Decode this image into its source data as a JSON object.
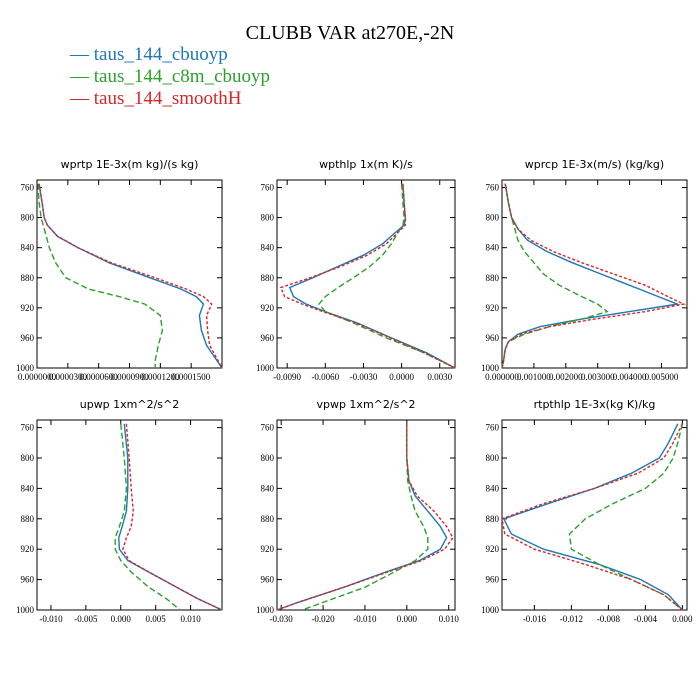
{
  "title": "CLUBB VAR at270E,-2N",
  "legend": [
    {
      "label": "taus_144_cbuoyp",
      "color": "#1f77b4",
      "dash": "solid"
    },
    {
      "label": "taus_144_c8m_cbuoyp",
      "color": "#2ca02c",
      "dash": "dashed"
    },
    {
      "label": "taus_144_smoothH",
      "color": "#d62728",
      "dash": "dotted"
    }
  ],
  "chart_data": [
    {
      "type": "line",
      "title": "wprtp  1E-3x(m kg)/(s kg)",
      "xlim": [
        0.0,
        0.00018
      ],
      "ylim": [
        1000,
        750
      ],
      "xticks": [
        0.0,
        3e-05,
        6e-05,
        9e-05,
        0.00012,
        0.00015
      ],
      "xtick_labels": [
        "0.0000000",
        "0.0000300",
        "0.0000600",
        "0.0000900",
        "0.0001200",
        "0.0001500"
      ],
      "yticks": [
        760,
        800,
        840,
        880,
        920,
        960,
        1000
      ],
      "y": [
        755,
        780,
        800,
        810,
        825,
        840,
        860,
        880,
        895,
        905,
        915,
        930,
        950,
        970,
        990,
        1000
      ],
      "series": [
        {
          "name": "taus_144_cbuoyp",
          "x": [
            2e-06,
            5e-06,
            7e-06,
            1e-05,
            2e-05,
            4e-05,
            7e-05,
            0.00011,
            0.00014,
            0.000155,
            0.000162,
            0.000158,
            0.00016,
            0.000165,
            0.000175,
            0.00018
          ]
        },
        {
          "name": "taus_144_c8m_cbuoyp",
          "x": [
            1e-06,
            2e-06,
            4e-06,
            6e-06,
            9e-06,
            1.2e-05,
            1.8e-05,
            2.8e-05,
            5e-05,
            8e-05,
            0.000105,
            0.00012,
            0.000122,
            0.000118,
            0.000115,
            0.000115
          ]
        },
        {
          "name": "taus_144_smoothH",
          "x": [
            2e-06,
            5e-06,
            7e-06,
            1e-05,
            2e-05,
            4e-05,
            7.2e-05,
            0.000115,
            0.000145,
            0.000162,
            0.00017,
            0.000165,
            0.000166,
            0.000168,
            0.000176,
            0.00018
          ]
        }
      ]
    },
    {
      "type": "line",
      "title": "wpthlp  1x(m K)/s",
      "xlim": [
        -0.0098,
        0.0042
      ],
      "ylim": [
        1000,
        750
      ],
      "xticks": [
        -0.009,
        -0.006,
        -0.003,
        0.0,
        0.003
      ],
      "xtick_labels": [
        "-0.0090",
        "-0.0060",
        "-0.0030",
        "0.0000",
        "0.0030"
      ],
      "yticks": [
        760,
        800,
        840,
        880,
        920,
        960,
        1000
      ],
      "y": [
        755,
        780,
        800,
        810,
        820,
        835,
        850,
        865,
        880,
        893,
        905,
        915,
        925,
        940,
        960,
        980,
        1000
      ],
      "series": [
        {
          "name": "taus_144_cbuoyp",
          "x": [
            0.0001,
            0.0002,
            0.0003,
            0.0002,
            -0.0005,
            -0.0015,
            -0.003,
            -0.005,
            -0.007,
            -0.0088,
            -0.0085,
            -0.0075,
            -0.006,
            -0.0035,
            -0.0008,
            0.002,
            0.0042
          ]
        },
        {
          "name": "taus_144_c8m_cbuoyp",
          "x": [
            0.0,
            0.0001,
            0.0002,
            0.0001,
            -0.0003,
            -0.0008,
            -0.0015,
            -0.0025,
            -0.0038,
            -0.005,
            -0.006,
            -0.0065,
            -0.006,
            -0.0038,
            -0.0012,
            0.0018,
            0.0042
          ]
        },
        {
          "name": "taus_144_smoothH",
          "x": [
            0.0001,
            0.0002,
            0.0003,
            0.0003,
            -0.0003,
            -0.0012,
            -0.0027,
            -0.0048,
            -0.0072,
            -0.0095,
            -0.0092,
            -0.0078,
            -0.0062,
            -0.0036,
            -0.0009,
            0.0018,
            0.0042
          ]
        }
      ]
    },
    {
      "type": "line",
      "title": "wprcp  1E-3x(m/s) (kg/kg)",
      "xlim": [
        0.0,
        0.0058
      ],
      "ylim": [
        1000,
        750
      ],
      "xticks": [
        0.0,
        0.001,
        0.002,
        0.003,
        0.004,
        0.005
      ],
      "xtick_labels": [
        "0.000000",
        "0.001000",
        "0.002000",
        "0.003000",
        "0.004000",
        "0.005000"
      ],
      "yticks": [
        760,
        800,
        840,
        880,
        920,
        960,
        1000
      ],
      "y": [
        755,
        780,
        800,
        815,
        830,
        845,
        860,
        875,
        890,
        905,
        915,
        925,
        935,
        945,
        955,
        965,
        975,
        990,
        1000
      ],
      "series": [
        {
          "name": "taus_144_cbuoyp",
          "x": [
            0.0001,
            0.0002,
            0.0003,
            0.0005,
            0.0008,
            0.0014,
            0.0022,
            0.0031,
            0.004,
            0.0049,
            0.0055,
            0.004,
            0.0025,
            0.0012,
            0.0005,
            0.0002,
            0.0001,
            5e-05,
            0.0
          ]
        },
        {
          "name": "taus_144_c8m_cbuoyp",
          "x": [
            0.0001,
            0.0002,
            0.0003,
            0.0004,
            0.0005,
            0.0007,
            0.001,
            0.0013,
            0.0018,
            0.0025,
            0.003,
            0.0033,
            0.0025,
            0.0015,
            0.0007,
            0.0002,
            0.0001,
            5e-05,
            0.0
          ]
        },
        {
          "name": "taus_144_smoothH",
          "x": [
            0.0001,
            0.0002,
            0.0003,
            0.0005,
            0.0009,
            0.0016,
            0.0025,
            0.0035,
            0.0045,
            0.0052,
            0.0057,
            0.0045,
            0.0029,
            0.0015,
            0.0006,
            0.0002,
            0.0001,
            5e-05,
            0.0
          ]
        }
      ]
    },
    {
      "type": "line",
      "title": "upwp  1xm^2/s^2",
      "xlim": [
        -0.012,
        0.0145
      ],
      "ylim": [
        1000,
        750
      ],
      "xticks": [
        -0.01,
        -0.005,
        0.0,
        0.005,
        0.01
      ],
      "xtick_labels": [
        "-0.010",
        "-0.005",
        "0.000",
        "0.005",
        "0.010"
      ],
      "yticks": [
        760,
        800,
        840,
        880,
        920,
        960,
        1000
      ],
      "y": [
        755,
        800,
        840,
        870,
        890,
        905,
        920,
        935,
        950,
        970,
        985,
        1000
      ],
      "series": [
        {
          "name": "taus_144_cbuoyp",
          "x": [
            0.0005,
            0.001,
            0.001,
            0.0008,
            0.0002,
            -0.0003,
            -0.0002,
            0.001,
            0.004,
            0.008,
            0.011,
            0.0145
          ]
        },
        {
          "name": "taus_144_c8m_cbuoyp",
          "x": [
            0.0,
            0.0005,
            0.0008,
            0.0005,
            -0.0002,
            -0.0008,
            -0.0008,
            0.0,
            0.0015,
            0.004,
            0.0065,
            0.0085
          ]
        },
        {
          "name": "taus_144_smoothH",
          "x": [
            0.0008,
            0.0012,
            0.0015,
            0.0018,
            0.0015,
            0.0008,
            0.0003,
            0.0012,
            0.004,
            0.008,
            0.011,
            0.0145
          ]
        }
      ]
    },
    {
      "type": "line",
      "title": "vpwp  1xm^2/s^2",
      "xlim": [
        -0.031,
        0.0115
      ],
      "ylim": [
        1000,
        750
      ],
      "xticks": [
        -0.03,
        -0.02,
        -0.01,
        0.0,
        0.01
      ],
      "xtick_labels": [
        "-0.030",
        "-0.020",
        "-0.010",
        "0.000",
        "0.010"
      ],
      "yticks": [
        760,
        800,
        840,
        880,
        920,
        960,
        1000
      ],
      "y": [
        755,
        800,
        830,
        850,
        870,
        890,
        905,
        920,
        935,
        950,
        970,
        990,
        1000
      ],
      "series": [
        {
          "name": "taus_144_cbuoyp",
          "x": [
            0.0,
            0.0,
            0.0005,
            0.002,
            0.005,
            0.008,
            0.0095,
            0.008,
            0.003,
            -0.005,
            -0.015,
            -0.026,
            -0.031
          ]
        },
        {
          "name": "taus_144_c8m_cbuoyp",
          "x": [
            0.0,
            0.0,
            0.0002,
            0.001,
            0.002,
            0.004,
            0.005,
            0.005,
            0.002,
            -0.003,
            -0.01,
            -0.02,
            -0.025
          ]
        },
        {
          "name": "taus_144_smoothH",
          "x": [
            0.0,
            0.0,
            0.0005,
            0.0025,
            0.0065,
            0.0095,
            0.011,
            0.009,
            0.0035,
            -0.0045,
            -0.015,
            -0.026,
            -0.031
          ]
        }
      ]
    },
    {
      "type": "line",
      "title": "rtpthlp  1E-3x(kg K)/kg",
      "xlim": [
        -0.0195,
        0.0005
      ],
      "ylim": [
        1000,
        750
      ],
      "xticks": [
        -0.016,
        -0.012,
        -0.008,
        -0.004,
        0.0
      ],
      "xtick_labels": [
        "-0.016",
        "-0.012",
        "-0.008",
        "-0.004",
        "0.000"
      ],
      "yticks": [
        760,
        800,
        840,
        880,
        920,
        960,
        1000
      ],
      "y": [
        755,
        780,
        800,
        820,
        840,
        860,
        880,
        900,
        920,
        940,
        960,
        980,
        1000
      ],
      "series": [
        {
          "name": "taus_144_cbuoyp",
          "x": [
            -0.0005,
            -0.0015,
            -0.0025,
            -0.0055,
            -0.0095,
            -0.0145,
            -0.0193,
            -0.0185,
            -0.015,
            -0.009,
            -0.0045,
            -0.0015,
            0.0
          ]
        },
        {
          "name": "taus_144_c8m_cbuoyp",
          "x": [
            0.0,
            -0.0005,
            -0.001,
            -0.002,
            -0.004,
            -0.0075,
            -0.0105,
            -0.0122,
            -0.012,
            -0.009,
            -0.0055,
            -0.002,
            0.0
          ]
        },
        {
          "name": "taus_144_smoothH",
          "x": [
            0.0,
            -0.001,
            -0.002,
            -0.0048,
            -0.0095,
            -0.015,
            -0.0195,
            -0.0192,
            -0.016,
            -0.0105,
            -0.0055,
            -0.002,
            0.0
          ]
        }
      ]
    }
  ]
}
